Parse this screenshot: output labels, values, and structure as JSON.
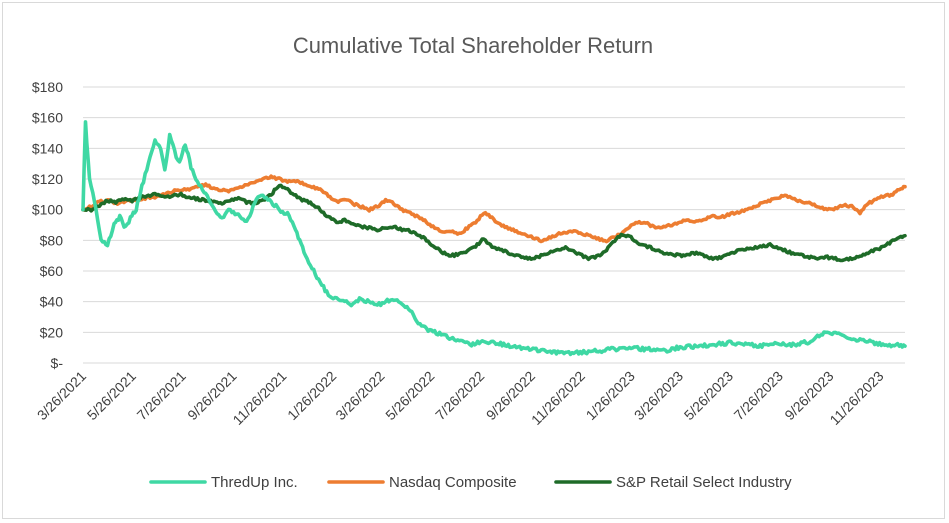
{
  "chart_data": {
    "type": "line",
    "title": "Cumulative Total Shareholder Return",
    "xlabel": "",
    "ylabel": "",
    "ylim": [
      0,
      180
    ],
    "y_ticks": [
      0,
      20,
      40,
      60,
      80,
      100,
      120,
      140,
      160,
      180
    ],
    "y_tick_labels": [
      "$-",
      "$20",
      "$40",
      "$60",
      "$80",
      "$100",
      "$120",
      "$140",
      "$160",
      "$180"
    ],
    "x_tick_labels": [
      "3/26/2021",
      "5/26/2021",
      "7/26/2021",
      "9/26/2021",
      "11/26/2021",
      "1/26/2022",
      "3/26/2022",
      "5/26/2022",
      "7/26/2022",
      "9/26/2022",
      "11/26/2022",
      "1/26/2023",
      "3/26/2023",
      "5/26/2023",
      "7/26/2023",
      "9/26/2023",
      "11/26/2023"
    ],
    "x_tick_days": [
      0,
      61,
      122,
      184,
      245,
      306,
      365,
      426,
      487,
      549,
      610,
      671,
      730,
      791,
      852,
      914,
      975
    ],
    "x_range_days": [
      0,
      1005
    ],
    "grid": true,
    "legend_position": "bottom",
    "series": [
      {
        "name": "ThredUp Inc.",
        "color": "#3fd8a4",
        "x": [
          0,
          3,
          8,
          14,
          22,
          30,
          38,
          45,
          52,
          58,
          65,
          72,
          80,
          88,
          95,
          100,
          106,
          112,
          118,
          125,
          132,
          140,
          150,
          160,
          170,
          180,
          190,
          200,
          210,
          220,
          230,
          240,
          250,
          258,
          265,
          272,
          280,
          290,
          300,
          310,
          320,
          330,
          340,
          350,
          360,
          370,
          380,
          390,
          400,
          410,
          420,
          430,
          440,
          450,
          460,
          475,
          490,
          505,
          520,
          540,
          560,
          575,
          590,
          610,
          630,
          650,
          670,
          690,
          710,
          730,
          750,
          770,
          790,
          810,
          830,
          850,
          870,
          880,
          890,
          900,
          910,
          920,
          930,
          940,
          950,
          960,
          970,
          980,
          990,
          1000,
          1005
        ],
        "values": [
          100,
          157,
          120,
          105,
          80,
          77,
          90,
          95,
          88,
          95,
          100,
          115,
          130,
          145,
          140,
          125,
          148,
          138,
          130,
          143,
          128,
          118,
          110,
          100,
          95,
          100,
          96,
          92,
          105,
          110,
          105,
          100,
          97,
          90,
          80,
          70,
          62,
          52,
          45,
          42,
          40,
          38,
          42,
          40,
          38,
          40,
          42,
          38,
          35,
          25,
          22,
          20,
          18,
          16,
          14,
          12,
          14,
          13,
          11,
          10,
          8,
          7,
          6,
          7,
          8,
          9,
          10,
          9,
          8,
          10,
          11,
          12,
          13,
          12,
          11,
          13,
          12,
          13,
          14,
          18,
          20,
          19,
          17,
          16,
          15,
          14,
          13,
          12,
          11,
          12,
          11
        ]
      },
      {
        "name": "Nasdaq Composite",
        "color": "#ed7d31",
        "x": [
          0,
          10,
          20,
          30,
          40,
          50,
          60,
          70,
          80,
          90,
          100,
          110,
          120,
          130,
          140,
          150,
          160,
          170,
          180,
          190,
          200,
          210,
          220,
          230,
          240,
          250,
          260,
          270,
          280,
          290,
          300,
          310,
          320,
          330,
          340,
          350,
          360,
          370,
          380,
          390,
          400,
          410,
          420,
          430,
          440,
          450,
          460,
          470,
          480,
          490,
          500,
          510,
          520,
          530,
          540,
          550,
          560,
          570,
          580,
          590,
          600,
          610,
          620,
          630,
          640,
          650,
          660,
          670,
          680,
          690,
          700,
          710,
          720,
          730,
          740,
          750,
          760,
          770,
          780,
          790,
          800,
          810,
          820,
          830,
          840,
          850,
          860,
          870,
          880,
          890,
          900,
          910,
          920,
          930,
          940,
          950,
          960,
          970,
          980,
          990,
          1000,
          1005
        ],
        "values": [
          100,
          102,
          105,
          106,
          104,
          105,
          106,
          107,
          108,
          108,
          110,
          112,
          113,
          113,
          115,
          116,
          114,
          113,
          112,
          114,
          116,
          118,
          120,
          121,
          120,
          118,
          119,
          117,
          115,
          113,
          109,
          105,
          107,
          104,
          102,
          100,
          102,
          106,
          104,
          100,
          98,
          95,
          92,
          88,
          85,
          86,
          84,
          88,
          92,
          98,
          95,
          90,
          88,
          86,
          84,
          82,
          80,
          82,
          84,
          85,
          86,
          84,
          83,
          81,
          80,
          82,
          85,
          90,
          92,
          91,
          88,
          89,
          90,
          92,
          93,
          92,
          94,
          96,
          95,
          97,
          98,
          100,
          102,
          104,
          106,
          108,
          109,
          107,
          105,
          104,
          102,
          100,
          101,
          103,
          102,
          98,
          104,
          107,
          109,
          110,
          114,
          115
        ]
      },
      {
        "name": "S&P Retail Select Industry",
        "color": "#1e6b28",
        "x": [
          0,
          10,
          20,
          30,
          40,
          50,
          60,
          70,
          80,
          90,
          100,
          110,
          120,
          130,
          140,
          150,
          160,
          170,
          180,
          190,
          200,
          210,
          220,
          230,
          240,
          250,
          260,
          270,
          280,
          290,
          300,
          310,
          320,
          330,
          340,
          350,
          360,
          370,
          380,
          390,
          400,
          410,
          420,
          430,
          440,
          450,
          460,
          470,
          480,
          490,
          500,
          510,
          520,
          530,
          540,
          550,
          560,
          570,
          580,
          590,
          600,
          610,
          620,
          630,
          640,
          650,
          660,
          670,
          680,
          690,
          700,
          710,
          720,
          730,
          740,
          750,
          760,
          770,
          780,
          790,
          800,
          810,
          820,
          830,
          840,
          850,
          860,
          870,
          880,
          890,
          900,
          910,
          920,
          930,
          940,
          950,
          960,
          970,
          980,
          990,
          1000,
          1005
        ],
        "values": [
          100,
          100,
          103,
          106,
          105,
          107,
          106,
          108,
          109,
          110,
          108,
          109,
          110,
          108,
          107,
          106,
          105,
          104,
          106,
          108,
          105,
          104,
          106,
          110,
          116,
          113,
          109,
          106,
          104,
          100,
          95,
          92,
          93,
          90,
          89,
          88,
          87,
          88,
          89,
          87,
          86,
          84,
          80,
          76,
          72,
          70,
          71,
          73,
          76,
          81,
          76,
          74,
          72,
          70,
          69,
          68,
          70,
          72,
          74,
          75,
          73,
          70,
          68,
          70,
          74,
          80,
          84,
          82,
          78,
          76,
          74,
          72,
          71,
          70,
          71,
          72,
          70,
          68,
          69,
          71,
          73,
          74,
          75,
          76,
          77,
          75,
          73,
          71,
          70,
          69,
          68,
          69,
          68,
          67,
          68,
          70,
          72,
          74,
          76,
          80,
          82,
          83
        ]
      }
    ]
  }
}
